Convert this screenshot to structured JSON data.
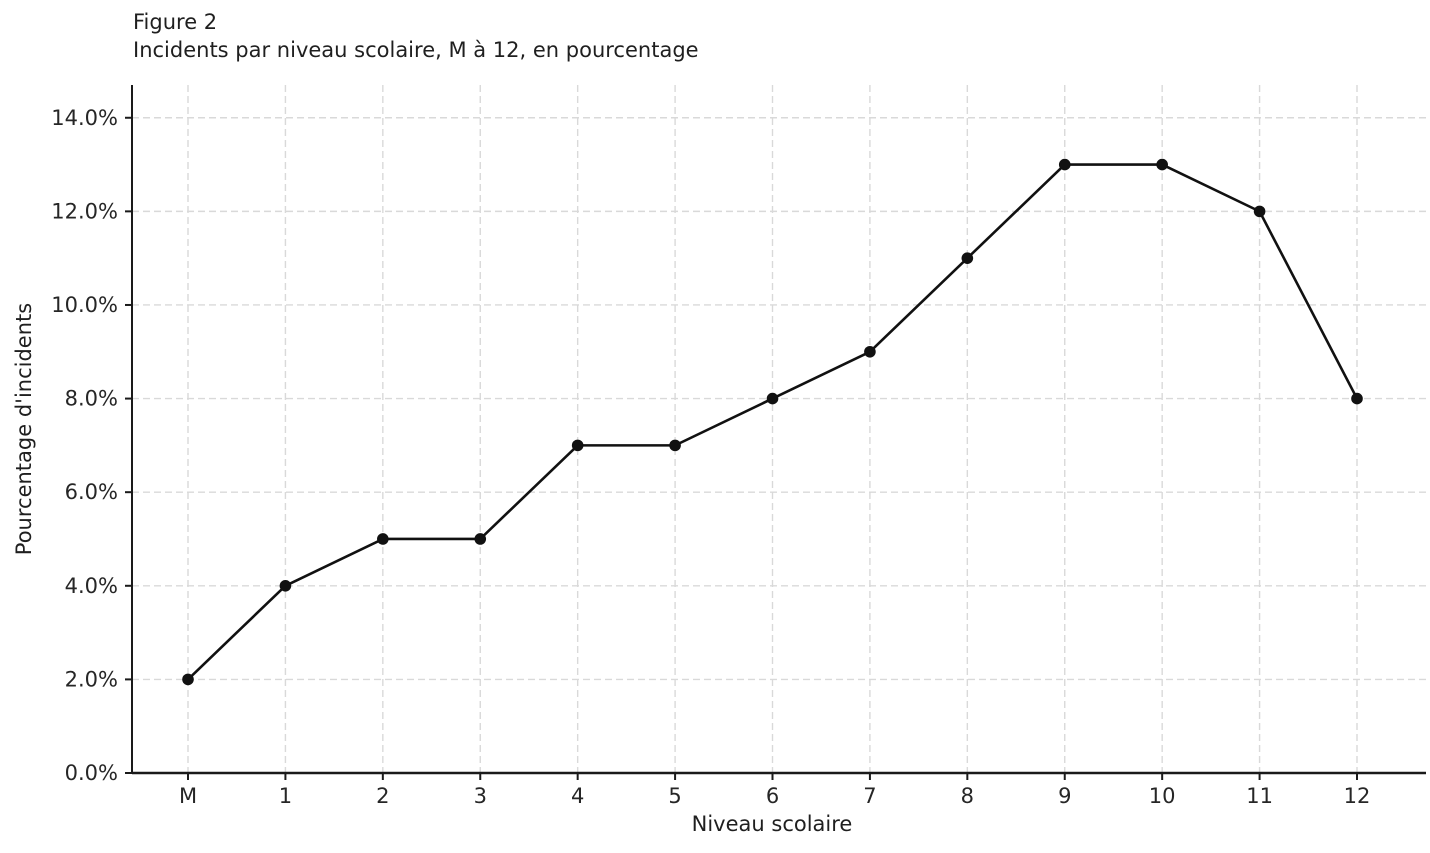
{
  "figure": {
    "title": "Figure 2",
    "subtitle": "Incidents par niveau scolaire, M à 12, en pourcentage"
  },
  "chart_data": {
    "type": "line",
    "title": "Figure 2",
    "subtitle": "Incidents par niveau scolaire, M à 12, en pourcentage",
    "xlabel": "Niveau scolaire",
    "ylabel": "Pourcentage d'incidents",
    "categories": [
      "M",
      "1",
      "2",
      "3",
      "4",
      "5",
      "6",
      "7",
      "8",
      "9",
      "10",
      "11",
      "12"
    ],
    "values": [
      2,
      4,
      5,
      5,
      7,
      7,
      8,
      9,
      11,
      13,
      13,
      12,
      8
    ],
    "unit": "percent",
    "yticks": [
      0,
      2,
      4,
      6,
      8,
      10,
      12,
      14
    ],
    "ytick_labels": [
      "0.0%",
      "2.0%",
      "4.0%",
      "6.0%",
      "8.0%",
      "10.0%",
      "12.0%",
      "14.0%"
    ],
    "ylim": [
      0,
      14.7
    ],
    "grid": true,
    "grid_style": "dashed",
    "legend_position": "none",
    "colors": {
      "line": "#111111",
      "marker": "#111111",
      "grid": "#d9d9d9",
      "spine": "#1a1a1a",
      "text": "#262626"
    }
  }
}
